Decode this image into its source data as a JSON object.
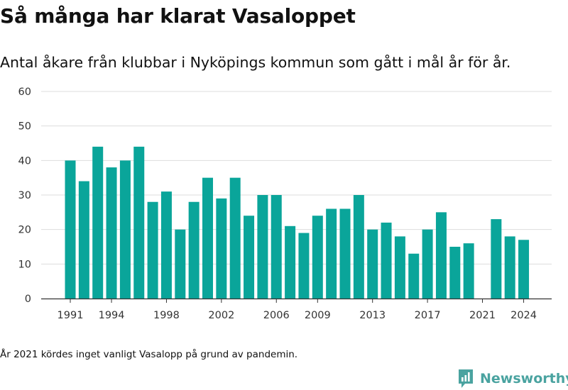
{
  "header": {
    "title": "Så många har klarat Vasaloppet",
    "subtitle": "Antal åkare från klubbar i Nyköpings kommun som gått i mål år för år."
  },
  "footnote": "År 2021 kördes inget vanligt Vasalopp på grund av pandemin.",
  "brand": {
    "name": "Newsworthy",
    "icon": "newsworthy-logo-icon",
    "color": "#4aa3a0"
  },
  "colors": {
    "bar": "#0aa59a",
    "grid": "#dddddd",
    "axis": "#333333"
  },
  "chart_data": {
    "type": "bar",
    "title": "Så många har klarat Vasaloppet",
    "subtitle": "Antal åkare från klubbar i Nyköpings kommun som gått i mål år för år.",
    "xlabel": "",
    "ylabel": "",
    "ylim": [
      0,
      60
    ],
    "yticks": [
      0,
      10,
      20,
      30,
      40,
      50,
      60
    ],
    "xtick_labels": [
      "1991",
      "1994",
      "1998",
      "2002",
      "2006",
      "2009",
      "2013",
      "2017",
      "2021",
      "2024"
    ],
    "grid": true,
    "legend": "none",
    "categories": [
      "1991",
      "1992",
      "1993",
      "1994",
      "1995",
      "1996",
      "1997",
      "1998",
      "1999",
      "2000",
      "2001",
      "2002",
      "2003",
      "2004",
      "2005",
      "2006",
      "2007",
      "2008",
      "2009",
      "2010",
      "2011",
      "2012",
      "2013",
      "2014",
      "2015",
      "2016",
      "2017",
      "2018",
      "2019",
      "2020",
      "2021",
      "2022",
      "2023",
      "2024"
    ],
    "values": [
      40,
      34,
      44,
      38,
      40,
      44,
      28,
      31,
      20,
      28,
      35,
      29,
      35,
      24,
      30,
      30,
      21,
      19,
      24,
      26,
      26,
      30,
      20,
      22,
      18,
      13,
      20,
      25,
      15,
      16,
      null,
      23,
      18,
      17
    ]
  }
}
